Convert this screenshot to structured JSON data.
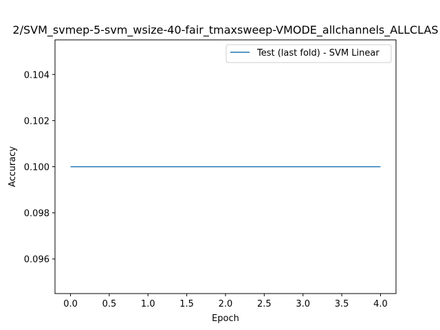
{
  "chart_data": {
    "type": "line",
    "title": "2/SVM_svmep-5-svm_wsize-40-fair_tmaxsweep-VMODE_allchannels_ALLCLAS",
    "xlabel": "Epoch",
    "ylabel": "Accuracy",
    "xlim": [
      -0.2,
      4.2
    ],
    "ylim": [
      0.0945,
      0.1055
    ],
    "xticks": [
      0.0,
      0.5,
      1.0,
      1.5,
      2.0,
      2.5,
      3.0,
      3.5,
      4.0
    ],
    "xtick_labels": [
      "0.0",
      "0.5",
      "1.0",
      "1.5",
      "2.0",
      "2.5",
      "3.0",
      "3.5",
      "4.0"
    ],
    "yticks": [
      0.096,
      0.098,
      0.1,
      0.102,
      0.104
    ],
    "ytick_labels": [
      "0.096",
      "0.098",
      "0.100",
      "0.102",
      "0.104"
    ],
    "grid": false,
    "legend_position": "top-right",
    "series": [
      {
        "name": "Test (last fold) - SVM Linear",
        "color": "#1f77b4",
        "x": [
          0,
          1,
          2,
          3,
          4
        ],
        "y": [
          0.1,
          0.1,
          0.1,
          0.1,
          0.1
        ]
      }
    ]
  }
}
